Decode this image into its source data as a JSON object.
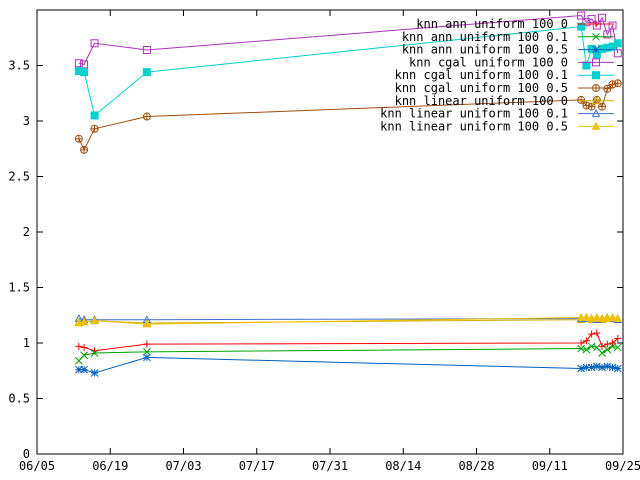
{
  "chart_data": {
    "type": "line",
    "title": "",
    "xlabel": "",
    "ylabel": "",
    "xlim": [
      "2013-06-05",
      "2013-09-25"
    ],
    "ylim": [
      0,
      4
    ],
    "grid": false,
    "legend_position": "top-right",
    "x_tick_labels": [
      "06/05",
      "06/19",
      "07/03",
      "07/17",
      "07/31",
      "08/14",
      "08/28",
      "09/11",
      "09/25"
    ],
    "y_tick_labels": [
      "0",
      "0.5",
      "1",
      "1.5",
      "2",
      "2.5",
      "3",
      "3.5"
    ],
    "series": [
      {
        "name": "knn ann uniform 100 0",
        "color": "#ff0000",
        "marker": "plus",
        "x": [
          "2013-06-13",
          "2013-06-14",
          "2013-06-16",
          "2013-06-26",
          "2013-09-17",
          "2013-09-18",
          "2013-09-19",
          "2013-09-20",
          "2013-09-21",
          "2013-09-22",
          "2013-09-23",
          "2013-09-24"
        ],
        "y": [
          0.97,
          0.96,
          0.93,
          0.99,
          1.0,
          1.02,
          1.08,
          1.09,
          0.97,
          0.99,
          1.0,
          1.04
        ]
      },
      {
        "name": "knn ann uniform 100 0.1",
        "color": "#00a000",
        "marker": "cross",
        "x": [
          "2013-06-13",
          "2013-06-14",
          "2013-06-16",
          "2013-06-26",
          "2013-09-17",
          "2013-09-18",
          "2013-09-19",
          "2013-09-20",
          "2013-09-21",
          "2013-09-22",
          "2013-09-23",
          "2013-09-24"
        ],
        "y": [
          0.84,
          0.89,
          0.91,
          0.92,
          0.95,
          0.94,
          0.97,
          0.96,
          0.91,
          0.94,
          0.97,
          0.96
        ]
      },
      {
        "name": "knn ann uniform 100 0.5",
        "color": "#0060c0",
        "marker": "star",
        "x": [
          "2013-06-13",
          "2013-06-14",
          "2013-06-16",
          "2013-06-26",
          "2013-09-17",
          "2013-09-18",
          "2013-09-19",
          "2013-09-20",
          "2013-09-21",
          "2013-09-22",
          "2013-09-23",
          "2013-09-24"
        ],
        "y": [
          0.76,
          0.76,
          0.73,
          0.87,
          0.77,
          0.78,
          0.78,
          0.79,
          0.78,
          0.79,
          0.78,
          0.77
        ]
      },
      {
        "name": "knn cgal uniform 100 0",
        "color": "#b030c0",
        "marker": "open-square",
        "x": [
          "2013-06-13",
          "2013-06-14",
          "2013-06-16",
          "2013-06-26",
          "2013-09-17",
          "2013-09-18",
          "2013-09-19",
          "2013-09-20",
          "2013-09-21",
          "2013-09-22",
          "2013-09-23",
          "2013-09-24"
        ],
        "y": [
          3.52,
          3.51,
          3.7,
          3.64,
          3.95,
          3.89,
          3.92,
          3.86,
          3.93,
          3.78,
          3.86,
          3.61
        ]
      },
      {
        "name": "knn cgal uniform 100 0.1",
        "color": "#00d0d0",
        "marker": "filled-square",
        "x": [
          "2013-06-13",
          "2013-06-14",
          "2013-06-16",
          "2013-06-26",
          "2013-09-17",
          "2013-09-18",
          "2013-09-19",
          "2013-09-20",
          "2013-09-21",
          "2013-09-22",
          "2013-09-23",
          "2013-09-24"
        ],
        "y": [
          3.45,
          3.44,
          3.05,
          3.44,
          3.85,
          3.5,
          3.65,
          3.6,
          3.65,
          3.66,
          3.67,
          3.7
        ]
      },
      {
        "name": "knn cgal uniform 100 0.5",
        "color": "#a05010",
        "marker": "circle-plus",
        "x": [
          "2013-06-13",
          "2013-06-14",
          "2013-06-16",
          "2013-06-26",
          "2013-09-17",
          "2013-09-18",
          "2013-09-19",
          "2013-09-20",
          "2013-09-21",
          "2013-09-22",
          "2013-09-23",
          "2013-09-24"
        ],
        "y": [
          2.84,
          2.74,
          2.93,
          3.04,
          3.19,
          3.14,
          3.13,
          3.19,
          3.13,
          3.29,
          3.33,
          3.34
        ]
      },
      {
        "name": "knn linear uniform 100 0",
        "color": "#d0b000",
        "marker": "open-triangle",
        "x": [
          "2013-06-13",
          "2013-06-14",
          "2013-06-16",
          "2013-06-26",
          "2013-09-17",
          "2013-09-18",
          "2013-09-19",
          "2013-09-20",
          "2013-09-21",
          "2013-09-22",
          "2013-09-23",
          "2013-09-24"
        ],
        "y": [
          1.19,
          1.19,
          1.2,
          1.18,
          1.21,
          1.22,
          1.21,
          1.22,
          1.21,
          1.23,
          1.22,
          1.21
        ]
      },
      {
        "name": "knn linear uniform 100 0.1",
        "color": "#4070d0",
        "marker": "open-triangle",
        "x": [
          "2013-06-13",
          "2013-06-14",
          "2013-06-16",
          "2013-06-26",
          "2013-09-17",
          "2013-09-18",
          "2013-09-19",
          "2013-09-20",
          "2013-09-21",
          "2013-09-22",
          "2013-09-23",
          "2013-09-24"
        ],
        "y": [
          1.22,
          1.21,
          1.21,
          1.21,
          1.22,
          1.22,
          1.22,
          1.21,
          1.22,
          1.22,
          1.22,
          1.21
        ]
      },
      {
        "name": "knn linear uniform 100 0.5",
        "color": "#f0c000",
        "marker": "filled-triangle",
        "x": [
          "2013-06-13",
          "2013-06-14",
          "2013-06-16",
          "2013-06-26",
          "2013-09-17",
          "2013-09-18",
          "2013-09-19",
          "2013-09-20",
          "2013-09-21",
          "2013-09-22",
          "2013-09-23",
          "2013-09-24"
        ],
        "y": [
          1.18,
          1.19,
          1.2,
          1.17,
          1.23,
          1.23,
          1.22,
          1.23,
          1.22,
          1.22,
          1.23,
          1.22
        ]
      }
    ]
  }
}
